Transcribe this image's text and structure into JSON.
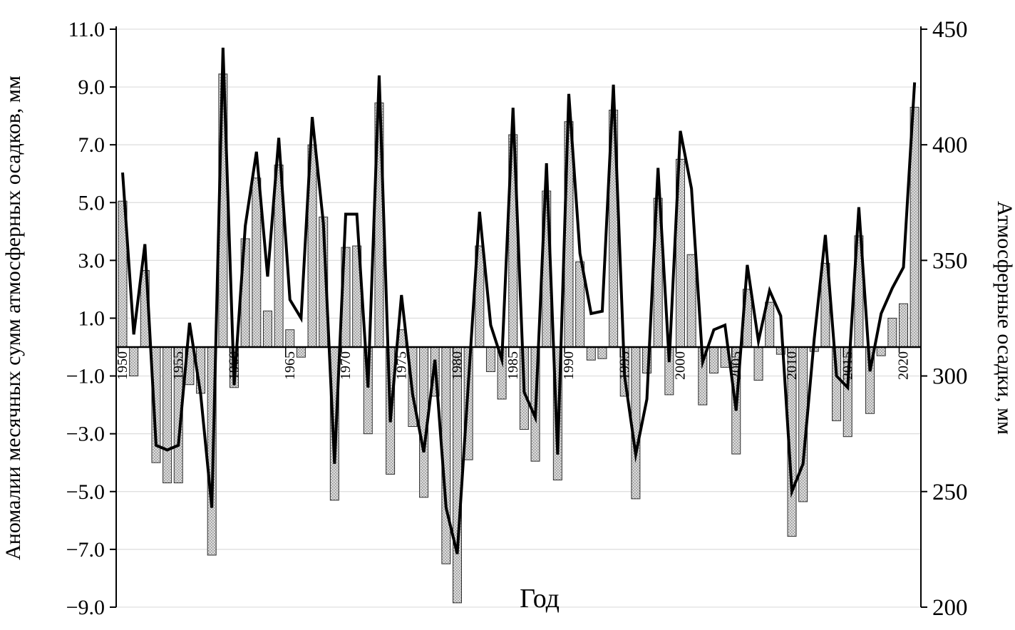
{
  "chart_data": {
    "type": "combo-bar-line",
    "title": "",
    "xlabel": "Год",
    "left_axis": {
      "label": "Аномалии месячных сумм атмосферных осадков, мм",
      "min": -9.0,
      "max": 11.0,
      "step": 2.0,
      "tick_values": [
        11,
        9,
        7,
        5,
        3,
        1,
        -1,
        -3,
        -5,
        -7,
        -9
      ],
      "tick_labels": [
        "11.0",
        "9.0",
        "7.0",
        "5.0",
        "3.0",
        "1.0",
        "−1.0",
        "−3.0",
        "−5.0",
        "−7.0",
        "−9.0"
      ]
    },
    "right_axis": {
      "label": "Атмосферные осадки, мм",
      "min": 200,
      "max": 450,
      "step": 50,
      "tick_values": [
        450,
        400,
        350,
        300,
        250,
        200
      ],
      "tick_labels": [
        "450",
        "400",
        "350",
        "300",
        "250",
        "200"
      ]
    },
    "x_tick_years": [
      1950,
      1955,
      1960,
      1965,
      1970,
      1975,
      1980,
      1985,
      1990,
      1995,
      2000,
      2005,
      2010,
      2015,
      2020
    ],
    "categories": [
      1950,
      1951,
      1952,
      1953,
      1954,
      1955,
      1956,
      1957,
      1958,
      1959,
      1960,
      1961,
      1962,
      1963,
      1964,
      1965,
      1966,
      1967,
      1968,
      1969,
      1970,
      1971,
      1972,
      1973,
      1974,
      1975,
      1976,
      1977,
      1978,
      1979,
      1980,
      1981,
      1982,
      1983,
      1984,
      1985,
      1986,
      1987,
      1988,
      1989,
      1990,
      1991,
      1992,
      1993,
      1994,
      1995,
      1996,
      1997,
      1998,
      1999,
      2000,
      2001,
      2002,
      2003,
      2004,
      2005,
      2006,
      2007,
      2008,
      2009,
      2010,
      2011,
      2012,
      2013,
      2014,
      2015,
      2016,
      2017,
      2018,
      2019,
      2020,
      2021
    ],
    "series": [
      {
        "name": "Аномалии месячных сумм атмосферных осадков (bars, left axis)",
        "type": "bar",
        "axis": "left",
        "values": [
          5.05,
          -1.0,
          2.65,
          -4.0,
          -4.7,
          -4.7,
          -1.3,
          -1.6,
          -7.2,
          9.45,
          -1.4,
          3.75,
          5.85,
          1.25,
          6.3,
          0.6,
          -0.35,
          7.0,
          4.5,
          -5.3,
          3.45,
          3.5,
          -3.0,
          8.45,
          -4.4,
          0.6,
          -2.75,
          -5.2,
          -1.7,
          -7.5,
          -8.85,
          -3.9,
          3.5,
          -0.85,
          -1.8,
          7.35,
          -2.85,
          -3.95,
          5.4,
          -4.6,
          7.8,
          2.95,
          -0.45,
          -0.4,
          8.2,
          -1.7,
          -5.25,
          -0.9,
          5.15,
          -1.65,
          6.5,
          3.2,
          -2.0,
          -0.9,
          -0.7,
          -3.7,
          2.0,
          -1.15,
          1.55,
          -0.25,
          -6.55,
          -5.35,
          -0.15,
          2.9,
          -2.55,
          -3.1,
          3.85,
          -2.3,
          -0.3,
          1.0,
          1.5,
          8.3
        ]
      },
      {
        "name": "Атмосферные осадки (line, right axis, мм)",
        "type": "line",
        "axis": "right",
        "values": [
          388,
          318,
          357,
          270,
          268,
          270,
          323,
          292,
          243,
          442,
          296,
          365,
          397,
          343,
          403,
          333,
          325,
          412,
          366,
          262,
          370,
          370,
          295,
          430,
          280,
          335,
          292,
          267,
          307,
          243,
          223,
          297,
          371,
          322,
          307,
          416,
          293,
          282,
          392,
          266,
          422,
          353,
          327,
          328,
          426,
          300,
          266,
          290,
          390,
          306,
          406,
          381,
          306,
          320,
          322,
          285,
          348,
          315,
          337,
          326,
          250,
          262,
          316,
          361,
          300,
          295,
          373,
          302,
          327,
          338,
          347,
          427
        ]
      }
    ],
    "layout": {
      "grid": "horizontal-light",
      "legend": "none",
      "bar_fill": "#dcdcdc",
      "bar_dot": "#8f8f8f",
      "bar_stroke": "#2f2f2f",
      "line_color": "#000000",
      "grid_color": "#dcdcdc",
      "axis_color": "#000000",
      "background": "#ffffff"
    }
  }
}
